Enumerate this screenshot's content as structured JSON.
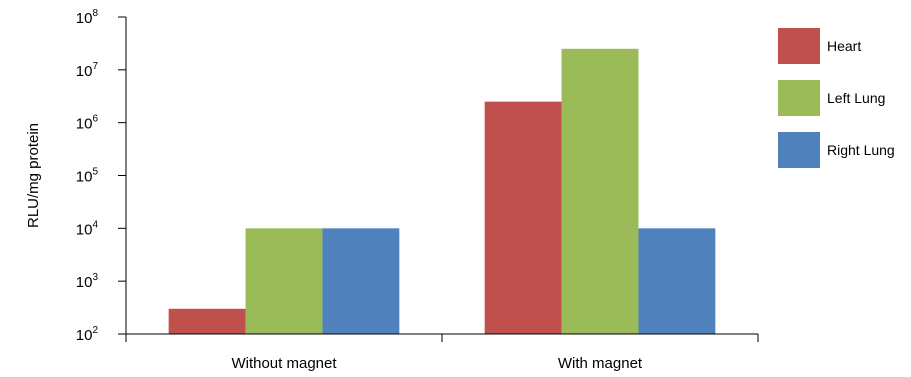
{
  "chart_data": {
    "type": "bar",
    "yscale": "log",
    "ylabel": "RLU/mg protein",
    "xlabel": "",
    "ylim": [
      100,
      100000000
    ],
    "yticks": [
      {
        "value": 100,
        "base": "10",
        "exp": "2"
      },
      {
        "value": 1000,
        "base": "10",
        "exp": "3"
      },
      {
        "value": 10000,
        "base": "10",
        "exp": "4"
      },
      {
        "value": 100000,
        "base": "10",
        "exp": "5"
      },
      {
        "value": 1000000,
        "base": "10",
        "exp": "6"
      },
      {
        "value": 10000000,
        "base": "10",
        "exp": "7"
      },
      {
        "value": 100000000,
        "base": "10",
        "exp": "8"
      }
    ],
    "categories": [
      "Without magnet",
      "With magnet"
    ],
    "series": [
      {
        "name": "Heart",
        "color": "#c0504d",
        "values": [
          300,
          2500000
        ]
      },
      {
        "name": "Left Lung",
        "color": "#9bbb59",
        "values": [
          10000,
          25000000
        ]
      },
      {
        "name": "Right Lung",
        "color": "#4f81bd",
        "values": [
          10000,
          10000
        ]
      }
    ],
    "grid": false,
    "legend": "right"
  }
}
